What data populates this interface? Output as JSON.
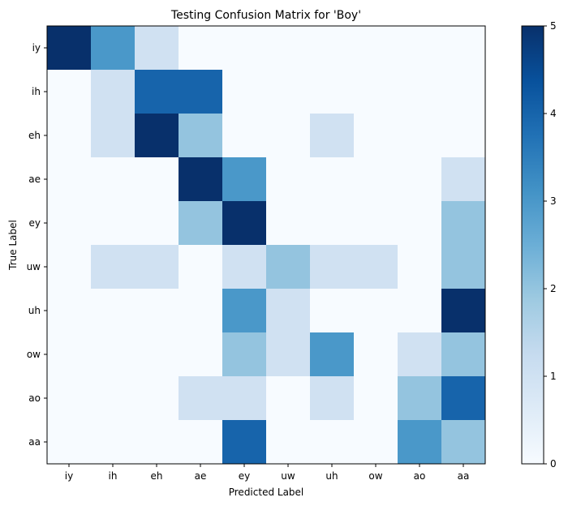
{
  "chart_data": {
    "type": "heatmap",
    "title": "Testing Confusion Matrix for 'Boy'",
    "xlabel": "Predicted Label",
    "ylabel": "True Label",
    "x_categories": [
      "iy",
      "ih",
      "eh",
      "ae",
      "ey",
      "uw",
      "uh",
      "ow",
      "ao",
      "aa"
    ],
    "y_categories": [
      "iy",
      "ih",
      "eh",
      "ae",
      "ey",
      "uw",
      "uh",
      "ow",
      "ao",
      "aa"
    ],
    "values": [
      [
        5,
        3,
        1,
        0,
        0,
        0,
        0,
        0,
        0,
        0
      ],
      [
        0,
        1,
        4,
        4,
        0,
        0,
        0,
        0,
        0,
        0
      ],
      [
        0,
        1,
        5,
        2,
        0,
        0,
        1,
        0,
        0,
        0
      ],
      [
        0,
        0,
        0,
        5,
        3,
        0,
        0,
        0,
        0,
        1
      ],
      [
        0,
        0,
        0,
        2,
        5,
        0,
        0,
        0,
        0,
        2
      ],
      [
        0,
        1,
        1,
        0,
        1,
        2,
        1,
        1,
        0,
        2
      ],
      [
        0,
        0,
        0,
        0,
        3,
        1,
        0,
        0,
        0,
        5
      ],
      [
        0,
        0,
        0,
        0,
        2,
        1,
        3,
        0,
        1,
        2
      ],
      [
        0,
        0,
        0,
        1,
        1,
        0,
        1,
        0,
        2,
        4
      ],
      [
        0,
        0,
        0,
        0,
        4,
        0,
        0,
        0,
        3,
        2
      ]
    ],
    "colormap": "Blues",
    "colorbar": {
      "min": 0,
      "max": 5,
      "ticks": [
        "0",
        "1",
        "2",
        "3",
        "4",
        "5"
      ]
    },
    "grid": false
  }
}
